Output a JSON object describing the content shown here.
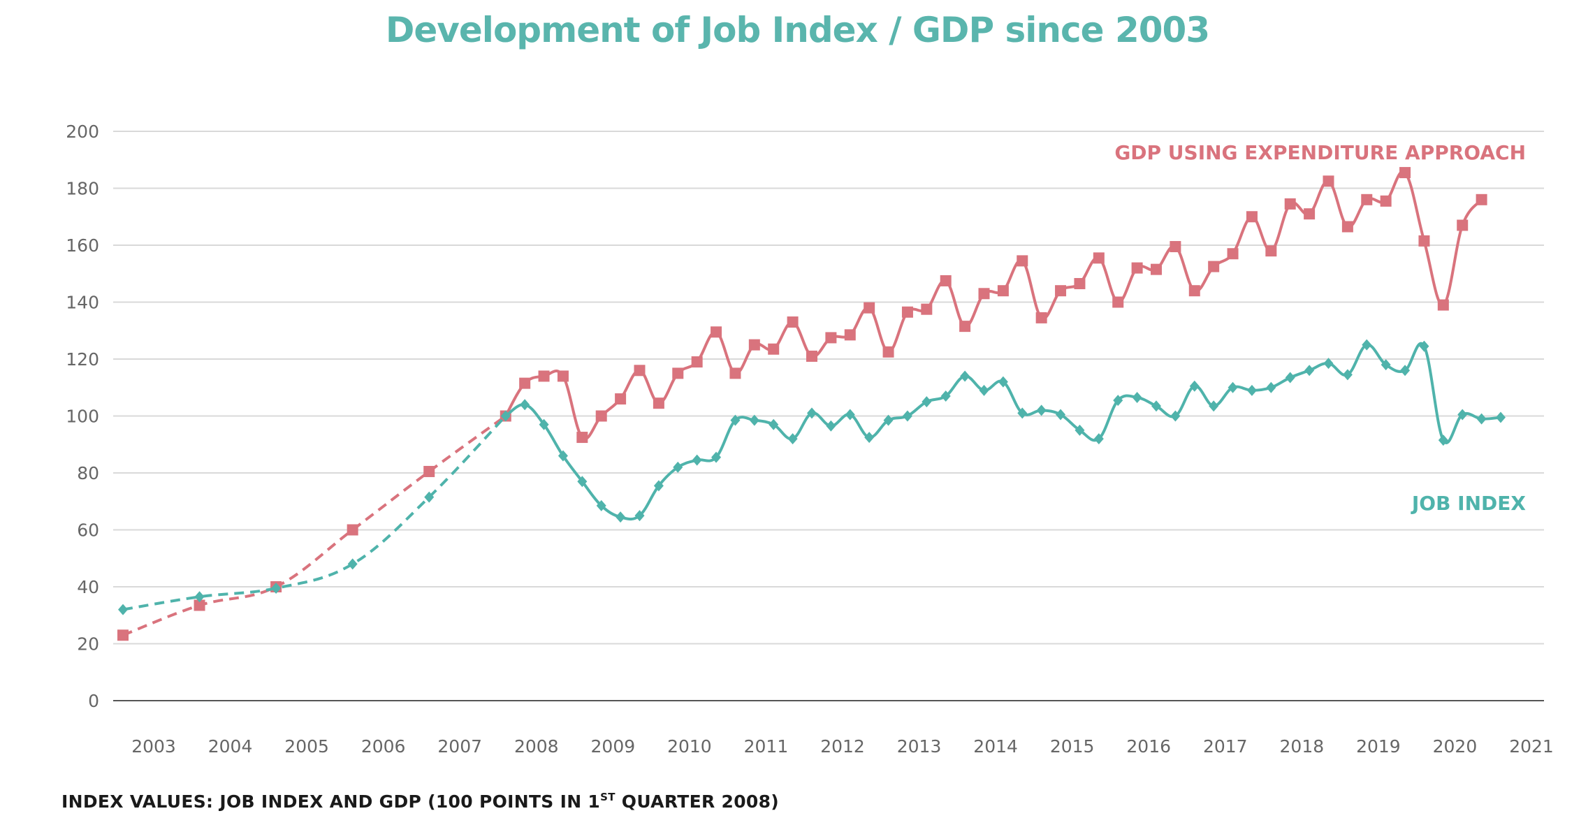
{
  "colors": {
    "title": "#5ab5ad",
    "gdp": "#d9737d",
    "job": "#4fb3ab",
    "grid": "#d9d9d9",
    "axis": "#555555",
    "tick_text": "#666666"
  },
  "chart_data": {
    "type": "line",
    "title": "Development of Job Index / GDP since 2003",
    "xlabel": "",
    "ylabel": "",
    "ylim": [
      0,
      200
    ],
    "yticks": [
      0,
      20,
      40,
      60,
      80,
      100,
      120,
      140,
      160,
      180,
      200
    ],
    "xticks": [
      "2003",
      "2004",
      "2005",
      "2006",
      "2007",
      "2008",
      "2009",
      "2010",
      "2011",
      "2012",
      "2013",
      "2014",
      "2015",
      "2016",
      "2017",
      "2018",
      "2019",
      "2020",
      "2021"
    ],
    "grid": true,
    "series": [
      {
        "name": "GDP USING EXPENDITURE APPROACH",
        "marker": "square",
        "annual": [
          {
            "x": 2003.0,
            "y": 23
          },
          {
            "x": 2004.0,
            "y": 33.5
          },
          {
            "x": 2005.0,
            "y": 40
          },
          {
            "x": 2006.0,
            "y": 60
          },
          {
            "x": 2007.0,
            "y": 80.5
          },
          {
            "x": 2008.0,
            "y": 100
          }
        ],
        "quarterly": [
          {
            "x": 2008.0,
            "y": 100
          },
          {
            "x": 2008.25,
            "y": 111.5
          },
          {
            "x": 2008.5,
            "y": 114
          },
          {
            "x": 2008.75,
            "y": 114
          },
          {
            "x": 2009.0,
            "y": 92.5
          },
          {
            "x": 2009.25,
            "y": 100
          },
          {
            "x": 2009.5,
            "y": 106
          },
          {
            "x": 2009.75,
            "y": 116
          },
          {
            "x": 2010.0,
            "y": 104.5
          },
          {
            "x": 2010.25,
            "y": 115
          },
          {
            "x": 2010.5,
            "y": 119
          },
          {
            "x": 2010.75,
            "y": 129.5
          },
          {
            "x": 2011.0,
            "y": 115
          },
          {
            "x": 2011.25,
            "y": 125
          },
          {
            "x": 2011.5,
            "y": 123.5
          },
          {
            "x": 2011.75,
            "y": 133
          },
          {
            "x": 2012.0,
            "y": 121
          },
          {
            "x": 2012.25,
            "y": 127.5
          },
          {
            "x": 2012.5,
            "y": 128.5
          },
          {
            "x": 2012.75,
            "y": 138
          },
          {
            "x": 2013.0,
            "y": 122.5
          },
          {
            "x": 2013.25,
            "y": 136.5
          },
          {
            "x": 2013.5,
            "y": 137.5
          },
          {
            "x": 2013.75,
            "y": 147.5
          },
          {
            "x": 2014.0,
            "y": 131.5
          },
          {
            "x": 2014.25,
            "y": 143
          },
          {
            "x": 2014.5,
            "y": 144
          },
          {
            "x": 2014.75,
            "y": 154.5
          },
          {
            "x": 2015.0,
            "y": 134.5
          },
          {
            "x": 2015.25,
            "y": 144
          },
          {
            "x": 2015.5,
            "y": 146.5
          },
          {
            "x": 2015.75,
            "y": 155.5
          },
          {
            "x": 2016.0,
            "y": 140
          },
          {
            "x": 2016.25,
            "y": 152
          },
          {
            "x": 2016.5,
            "y": 151.5
          },
          {
            "x": 2016.75,
            "y": 159.5
          },
          {
            "x": 2017.0,
            "y": 144
          },
          {
            "x": 2017.25,
            "y": 152.5
          },
          {
            "x": 2017.5,
            "y": 157
          },
          {
            "x": 2017.75,
            "y": 170
          },
          {
            "x": 2018.0,
            "y": 158
          },
          {
            "x": 2018.25,
            "y": 174.5
          },
          {
            "x": 2018.5,
            "y": 171
          },
          {
            "x": 2018.75,
            "y": 182.5
          },
          {
            "x": 2019.0,
            "y": 166.5
          },
          {
            "x": 2019.25,
            "y": 176
          },
          {
            "x": 2019.5,
            "y": 175.5
          },
          {
            "x": 2019.75,
            "y": 185.5
          },
          {
            "x": 2020.0,
            "y": 161.5
          },
          {
            "x": 2020.25,
            "y": 139
          },
          {
            "x": 2020.5,
            "y": 167
          },
          {
            "x": 2020.75,
            "y": 176
          }
        ]
      },
      {
        "name": "JOB INDEX",
        "marker": "diamond",
        "annual": [
          {
            "x": 2003.0,
            "y": 32
          },
          {
            "x": 2004.0,
            "y": 36.5
          },
          {
            "x": 2005.0,
            "y": 39.5
          },
          {
            "x": 2006.0,
            "y": 48
          },
          {
            "x": 2007.0,
            "y": 71.5
          },
          {
            "x": 2008.0,
            "y": 100
          }
        ],
        "quarterly": [
          {
            "x": 2008.0,
            "y": 100
          },
          {
            "x": 2008.25,
            "y": 104
          },
          {
            "x": 2008.5,
            "y": 97
          },
          {
            "x": 2008.75,
            "y": 86
          },
          {
            "x": 2009.0,
            "y": 77
          },
          {
            "x": 2009.25,
            "y": 68.5
          },
          {
            "x": 2009.5,
            "y": 64.5
          },
          {
            "x": 2009.75,
            "y": 65
          },
          {
            "x": 2010.0,
            "y": 75.5
          },
          {
            "x": 2010.25,
            "y": 82
          },
          {
            "x": 2010.5,
            "y": 84.5
          },
          {
            "x": 2010.75,
            "y": 85.5
          },
          {
            "x": 2011.0,
            "y": 98.5
          },
          {
            "x": 2011.25,
            "y": 98.5
          },
          {
            "x": 2011.5,
            "y": 97
          },
          {
            "x": 2011.75,
            "y": 92
          },
          {
            "x": 2012.0,
            "y": 101
          },
          {
            "x": 2012.25,
            "y": 96.5
          },
          {
            "x": 2012.5,
            "y": 100.5
          },
          {
            "x": 2012.75,
            "y": 92.5
          },
          {
            "x": 2013.0,
            "y": 98.5
          },
          {
            "x": 2013.25,
            "y": 100
          },
          {
            "x": 2013.5,
            "y": 105
          },
          {
            "x": 2013.75,
            "y": 107
          },
          {
            "x": 2014.0,
            "y": 114
          },
          {
            "x": 2014.25,
            "y": 109
          },
          {
            "x": 2014.5,
            "y": 112
          },
          {
            "x": 2014.75,
            "y": 101
          },
          {
            "x": 2015.0,
            "y": 102
          },
          {
            "x": 2015.25,
            "y": 100.5
          },
          {
            "x": 2015.5,
            "y": 95
          },
          {
            "x": 2015.75,
            "y": 92
          },
          {
            "x": 2016.0,
            "y": 105.5
          },
          {
            "x": 2016.25,
            "y": 106.5
          },
          {
            "x": 2016.5,
            "y": 103.5
          },
          {
            "x": 2016.75,
            "y": 100
          },
          {
            "x": 2017.0,
            "y": 110.5
          },
          {
            "x": 2017.25,
            "y": 103.5
          },
          {
            "x": 2017.5,
            "y": 110
          },
          {
            "x": 2017.75,
            "y": 109
          },
          {
            "x": 2018.0,
            "y": 110
          },
          {
            "x": 2018.25,
            "y": 113.5
          },
          {
            "x": 2018.5,
            "y": 116
          },
          {
            "x": 2018.75,
            "y": 118.5
          },
          {
            "x": 2019.0,
            "y": 114.5
          },
          {
            "x": 2019.25,
            "y": 125
          },
          {
            "x": 2019.5,
            "y": 118
          },
          {
            "x": 2019.75,
            "y": 116
          },
          {
            "x": 2020.0,
            "y": 124.5
          },
          {
            "x": 2020.25,
            "y": 91.5
          },
          {
            "x": 2020.5,
            "y": 100.5
          },
          {
            "x": 2020.75,
            "y": 99
          },
          {
            "x": 2021.0,
            "y": 99.5
          }
        ]
      }
    ],
    "footnote_main": "INDEX VALUES: JOB INDEX AND GDP (100 POINTS IN 1",
    "footnote_sup": "ST",
    "footnote_tail": " QUARTER 2008)"
  }
}
